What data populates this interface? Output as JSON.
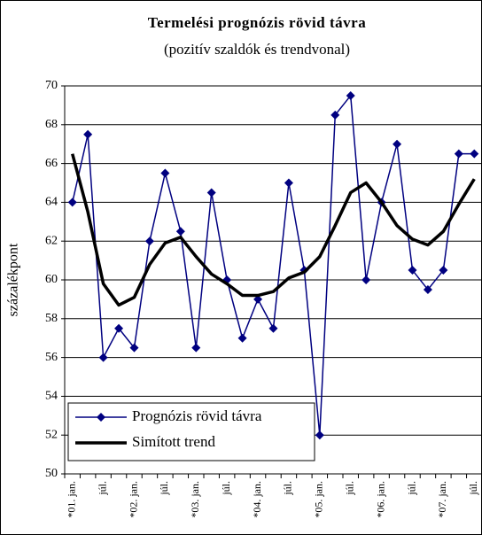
{
  "chart_data": {
    "type": "line",
    "title": "Termelési prognózis rövid távra",
    "subtitle": "(pozitív szaldók és trendvonal)",
    "y_label": "százalékpont",
    "categories": [
      "*01. jan.",
      null,
      "júl.",
      null,
      "*02. jan.",
      null,
      "júl.",
      null,
      "*03. jan.",
      null,
      "júl.",
      null,
      "*04. jan.",
      null,
      "júl.",
      null,
      "*05. jan.",
      null,
      "júl.",
      null,
      "*06. jan.",
      null,
      "júl.",
      null,
      "*07. jan.",
      null,
      "júl."
    ],
    "series": [
      {
        "name": "Prognózis rövid távra",
        "color": "#000080",
        "marker": "diamond",
        "values": [
          64,
          67.5,
          56,
          57.5,
          56.5,
          62,
          65.5,
          62.5,
          56.5,
          64.5,
          60,
          57,
          59,
          57.5,
          65,
          60.5,
          52,
          68.5,
          69.5,
          60,
          64,
          67,
          60.5,
          59.5,
          60.5,
          66.5,
          66.5
        ]
      },
      {
        "name": "Simított trend",
        "color": "#000000",
        "values": [
          66.5,
          63.5,
          59.8,
          58.7,
          59.1,
          60.8,
          61.9,
          62.2,
          61.2,
          60.3,
          59.8,
          59.2,
          59.2,
          59.4,
          60.1,
          60.4,
          61.2,
          62.8,
          64.5,
          65,
          64,
          62.8,
          62.1,
          61.8,
          62.5,
          63.9,
          65.2
        ]
      }
    ],
    "ylim": [
      50,
      70
    ],
    "yticks": [
      50,
      52,
      54,
      56,
      58,
      60,
      62,
      64,
      66,
      68,
      70
    ],
    "grid": true,
    "legend": "lower left"
  }
}
